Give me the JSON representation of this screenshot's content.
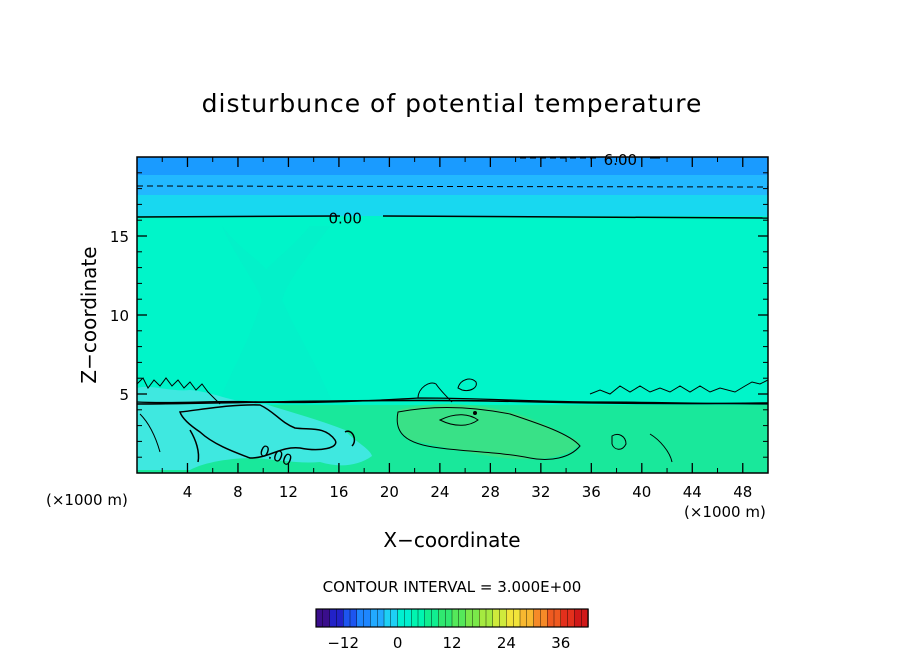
{
  "chart_data": {
    "type": "contour",
    "title": "disturbunce of potential temperature",
    "xlabel": "X−coordinate",
    "ylabel": "Z−coordinate",
    "x_unit": "(×1000 m)",
    "y_unit": "(×1000 m)",
    "xlim": [
      0,
      50
    ],
    "ylim": [
      0,
      20
    ],
    "xticks": [
      4,
      8,
      12,
      16,
      20,
      24,
      28,
      32,
      36,
      40,
      44,
      48
    ],
    "yticks": [
      5,
      10,
      15
    ],
    "contour_labels": [
      {
        "text": "0.00",
        "x": 16.5,
        "y": 16.1
      },
      {
        "text": "6.00",
        "x": 38.3,
        "y": 19.8
      },
      {
        "text": "0.00",
        "x": 11,
        "y": 1.1
      }
    ],
    "contour_interval_text": "CONTOUR INTERVAL = 3.000E+00",
    "colorbar": {
      "range": [
        -18,
        42
      ],
      "ticks": [
        -12,
        0,
        12,
        24,
        36
      ],
      "tick_labels": [
        "−12",
        "0",
        "12",
        "24",
        "36"
      ]
    },
    "colors": {
      "top_band_1": "#1a9bff",
      "top_band_2": "#22b8ff",
      "top_band_3": "#18d8f0",
      "main_field": "#00f5c9",
      "lower_field": "#19e89b",
      "cold_pool": "#3fe8e0"
    }
  }
}
